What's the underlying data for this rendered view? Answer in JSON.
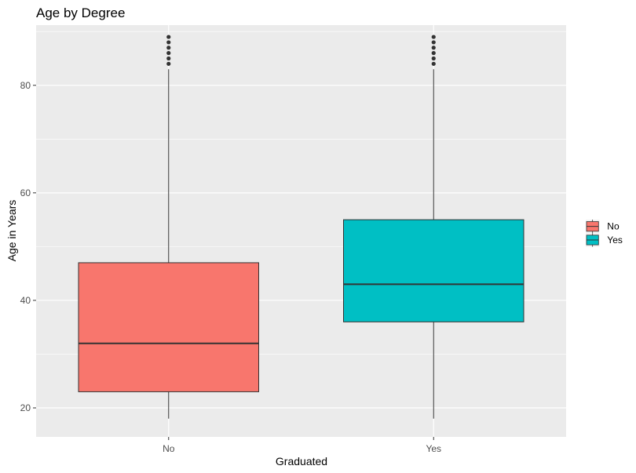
{
  "chart_data": {
    "type": "boxplot",
    "title": "Age by Degree",
    "xlabel": "Graduated",
    "ylabel": "Age in Years",
    "categories": [
      "No",
      "Yes"
    ],
    "ylim": [
      14.6,
      91.2
    ],
    "yticks": [
      20,
      40,
      60,
      80
    ],
    "grid": true,
    "legend_position": "right",
    "legend": [
      {
        "label": "No",
        "color": "#F8766D"
      },
      {
        "label": "Yes",
        "color": "#00BFC4"
      }
    ],
    "boxes": [
      {
        "category": "No",
        "whisker_low": 18,
        "q1": 23,
        "median": 32,
        "q3": 47,
        "whisker_high": 83,
        "outliers": [
          84,
          85,
          86,
          87,
          88,
          89
        ],
        "color": "#F8766D"
      },
      {
        "category": "Yes",
        "whisker_low": 18,
        "q1": 36,
        "median": 43,
        "q3": 55,
        "whisker_high": 83,
        "outliers": [
          84,
          85,
          86,
          87,
          88,
          89
        ],
        "color": "#00BFC4"
      }
    ]
  }
}
